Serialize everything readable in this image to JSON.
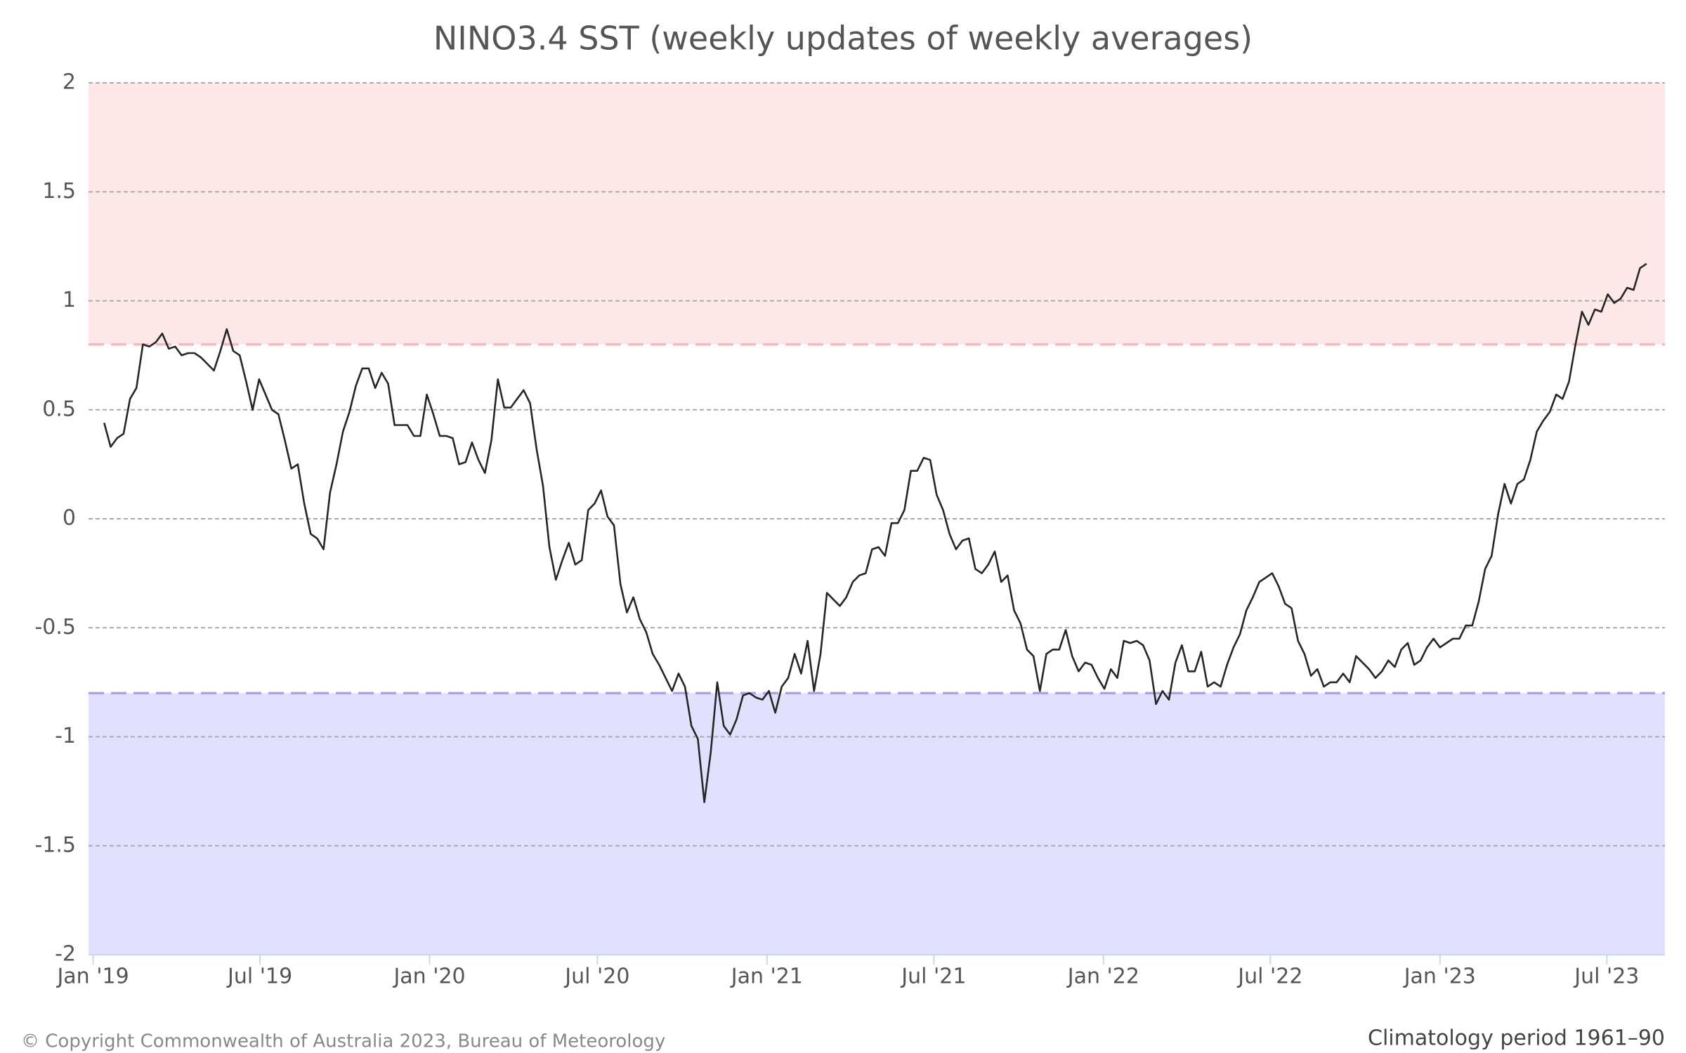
{
  "chart_data": {
    "type": "line",
    "title": "NINO3.4 SST (weekly updates of weekly averages)",
    "footer_left": "© Copyright Commonwealth of Australia 2023, Bureau of Meteorology",
    "footer_right": "Climatology period 1961–90",
    "xlim": [
      "2018-12-27",
      "2023-09-02"
    ],
    "xticks": [
      {
        "value": "2019-01-01",
        "label": "Jan '19"
      },
      {
        "value": "2019-07-01",
        "label": "Jul '19"
      },
      {
        "value": "2020-01-01",
        "label": "Jan '20"
      },
      {
        "value": "2020-07-01",
        "label": "Jul '20"
      },
      {
        "value": "2021-01-01",
        "label": "Jan '21"
      },
      {
        "value": "2021-07-01",
        "label": "Jul '21"
      },
      {
        "value": "2022-01-01",
        "label": "Jan '22"
      },
      {
        "value": "2022-07-01",
        "label": "Jul '22"
      },
      {
        "value": "2023-01-01",
        "label": "Jan '23"
      },
      {
        "value": "2023-07-01",
        "label": "Jul '23"
      }
    ],
    "ylim": [
      -2,
      2
    ],
    "yticks": [
      -2,
      -1.5,
      -1,
      -0.5,
      0,
      0.5,
      1,
      1.5,
      2
    ],
    "grid": true,
    "thresholds": [
      {
        "value": 0.8,
        "color": "#f7b9bd",
        "fill": "#fde8e8",
        "side": "above"
      },
      {
        "value": -0.8,
        "color": "#aaa6e2",
        "fill": "#e1e1fd",
        "side": "below"
      }
    ],
    "x": [
      "2019-01-13",
      "2019-01-20",
      "2019-01-27",
      "2019-02-03",
      "2019-02-10",
      "2019-02-17",
      "2019-02-24",
      "2019-03-03",
      "2019-03-10",
      "2019-03-17",
      "2019-03-24",
      "2019-03-31",
      "2019-04-07",
      "2019-04-14",
      "2019-04-21",
      "2019-04-28",
      "2019-05-05",
      "2019-05-12",
      "2019-05-19",
      "2019-05-26",
      "2019-06-02",
      "2019-06-09",
      "2019-06-16",
      "2019-06-23",
      "2019-06-30",
      "2019-07-07",
      "2019-07-14",
      "2019-07-21",
      "2019-07-28",
      "2019-08-04",
      "2019-08-11",
      "2019-08-18",
      "2019-08-25",
      "2019-09-01",
      "2019-09-08",
      "2019-09-15",
      "2019-09-22",
      "2019-09-29",
      "2019-10-06",
      "2019-10-13",
      "2019-10-20",
      "2019-10-27",
      "2019-11-03",
      "2019-11-10",
      "2019-11-17",
      "2019-11-24",
      "2019-12-01",
      "2019-12-08",
      "2019-12-15",
      "2019-12-22",
      "2019-12-29",
      "2020-01-05",
      "2020-01-12",
      "2020-01-19",
      "2020-01-26",
      "2020-02-02",
      "2020-02-09",
      "2020-02-16",
      "2020-02-23",
      "2020-03-01",
      "2020-03-08",
      "2020-03-15",
      "2020-03-22",
      "2020-03-29",
      "2020-04-05",
      "2020-04-12",
      "2020-04-19",
      "2020-04-26",
      "2020-05-03",
      "2020-05-10",
      "2020-05-17",
      "2020-05-24",
      "2020-05-31",
      "2020-06-07",
      "2020-06-14",
      "2020-06-21",
      "2020-06-28",
      "2020-07-05",
      "2020-07-12",
      "2020-07-19",
      "2020-07-26",
      "2020-08-02",
      "2020-08-09",
      "2020-08-16",
      "2020-08-23",
      "2020-08-30",
      "2020-09-06",
      "2020-09-13",
      "2020-09-20",
      "2020-09-27",
      "2020-10-04",
      "2020-10-11",
      "2020-10-18",
      "2020-10-25",
      "2020-11-01",
      "2020-11-08",
      "2020-11-15",
      "2020-11-22",
      "2020-11-29",
      "2020-12-06",
      "2020-12-13",
      "2020-12-20",
      "2020-12-27",
      "2021-01-03",
      "2021-01-10",
      "2021-01-17",
      "2021-01-24",
      "2021-01-31",
      "2021-02-07",
      "2021-02-14",
      "2021-02-21",
      "2021-02-28",
      "2021-03-07",
      "2021-03-14",
      "2021-03-21",
      "2021-03-28",
      "2021-04-04",
      "2021-04-11",
      "2021-04-18",
      "2021-04-25",
      "2021-05-02",
      "2021-05-09",
      "2021-05-16",
      "2021-05-23",
      "2021-05-30",
      "2021-06-06",
      "2021-06-13",
      "2021-06-20",
      "2021-06-27",
      "2021-07-04",
      "2021-07-11",
      "2021-07-18",
      "2021-07-25",
      "2021-08-01",
      "2021-08-08",
      "2021-08-15",
      "2021-08-22",
      "2021-08-29",
      "2021-09-05",
      "2021-09-12",
      "2021-09-19",
      "2021-09-26",
      "2021-10-03",
      "2021-10-10",
      "2021-10-17",
      "2021-10-24",
      "2021-10-31",
      "2021-11-07",
      "2021-11-14",
      "2021-11-21",
      "2021-11-28",
      "2021-12-05",
      "2021-12-12",
      "2021-12-19",
      "2021-12-26",
      "2022-01-02",
      "2022-01-09",
      "2022-01-16",
      "2022-01-23",
      "2022-01-30",
      "2022-02-06",
      "2022-02-13",
      "2022-02-20",
      "2022-02-27",
      "2022-03-06",
      "2022-03-13",
      "2022-03-20",
      "2022-03-27",
      "2022-04-03",
      "2022-04-10",
      "2022-04-17",
      "2022-04-24",
      "2022-05-01",
      "2022-05-08",
      "2022-05-15",
      "2022-05-22",
      "2022-05-29",
      "2022-06-05",
      "2022-06-12",
      "2022-06-19",
      "2022-06-26",
      "2022-07-03",
      "2022-07-10",
      "2022-07-17",
      "2022-07-24",
      "2022-07-31",
      "2022-08-07",
      "2022-08-14",
      "2022-08-21",
      "2022-08-28",
      "2022-09-04",
      "2022-09-11",
      "2022-09-18",
      "2022-09-25",
      "2022-10-02",
      "2022-10-09",
      "2022-10-16",
      "2022-10-23",
      "2022-10-30",
      "2022-11-06",
      "2022-11-13",
      "2022-11-20",
      "2022-11-27",
      "2022-12-04",
      "2022-12-11",
      "2022-12-18",
      "2022-12-25",
      "2023-01-01",
      "2023-01-08",
      "2023-01-15",
      "2023-01-22",
      "2023-01-29",
      "2023-02-05",
      "2023-02-12",
      "2023-02-19",
      "2023-02-26",
      "2023-03-05",
      "2023-03-12",
      "2023-03-19",
      "2023-03-26",
      "2023-04-02",
      "2023-04-09",
      "2023-04-16",
      "2023-04-23",
      "2023-04-30",
      "2023-05-07",
      "2023-05-14",
      "2023-05-21",
      "2023-05-28",
      "2023-06-04",
      "2023-06-11",
      "2023-06-18",
      "2023-06-25",
      "2023-07-02",
      "2023-07-09",
      "2023-07-16",
      "2023-07-23",
      "2023-07-30",
      "2023-08-06",
      "2023-08-13"
    ],
    "series": [
      {
        "name": "NINO3.4",
        "color": "#262626",
        "values": [
          0.44,
          0.33,
          0.37,
          0.39,
          0.55,
          0.6,
          0.8,
          0.79,
          0.81,
          0.85,
          0.78,
          0.79,
          0.75,
          0.76,
          0.76,
          0.74,
          0.71,
          0.68,
          0.77,
          0.87,
          0.77,
          0.75,
          0.63,
          0.5,
          0.64,
          0.57,
          0.5,
          0.48,
          0.36,
          0.23,
          0.25,
          0.07,
          -0.07,
          -0.09,
          -0.14,
          0.12,
          0.25,
          0.4,
          0.49,
          0.61,
          0.69,
          0.69,
          0.6,
          0.67,
          0.62,
          0.43,
          0.43,
          0.43,
          0.38,
          0.38,
          0.57,
          0.48,
          0.38,
          0.38,
          0.37,
          0.25,
          0.26,
          0.35,
          0.27,
          0.21,
          0.36,
          0.64,
          0.51,
          0.51,
          0.55,
          0.59,
          0.53,
          0.32,
          0.15,
          -0.13,
          -0.28,
          -0.19,
          -0.11,
          -0.21,
          -0.19,
          0.04,
          0.07,
          0.13,
          0.01,
          -0.03,
          -0.3,
          -0.43,
          -0.36,
          -0.46,
          -0.52,
          -0.62,
          -0.67,
          -0.73,
          -0.79,
          -0.71,
          -0.77,
          -0.95,
          -1.01,
          -1.3,
          -1.07,
          -0.75,
          -0.95,
          -0.99,
          -0.92,
          -0.81,
          -0.8,
          -0.82,
          -0.83,
          -0.79,
          -0.89,
          -0.77,
          -0.73,
          -0.62,
          -0.71,
          -0.56,
          -0.79,
          -0.62,
          -0.34,
          -0.37,
          -0.4,
          -0.36,
          -0.29,
          -0.26,
          -0.25,
          -0.14,
          -0.13,
          -0.17,
          -0.02,
          -0.02,
          0.04,
          0.22,
          0.22,
          0.28,
          0.27,
          0.11,
          0.04,
          -0.07,
          -0.14,
          -0.1,
          -0.09,
          -0.23,
          -0.25,
          -0.21,
          -0.15,
          -0.29,
          -0.26,
          -0.42,
          -0.48,
          -0.6,
          -0.63,
          -0.79,
          -0.62,
          -0.6,
          -0.6,
          -0.51,
          -0.63,
          -0.7,
          -0.66,
          -0.67,
          -0.73,
          -0.78,
          -0.69,
          -0.73,
          -0.56,
          -0.57,
          -0.56,
          -0.58,
          -0.65,
          -0.85,
          -0.79,
          -0.83,
          -0.66,
          -0.58,
          -0.7,
          -0.7,
          -0.61,
          -0.77,
          -0.75,
          -0.77,
          -0.67,
          -0.59,
          -0.53,
          -0.42,
          -0.36,
          -0.29,
          -0.27,
          -0.25,
          -0.31,
          -0.39,
          -0.41,
          -0.56,
          -0.62,
          -0.72,
          -0.69,
          -0.77,
          -0.75,
          -0.75,
          -0.71,
          -0.75,
          -0.63,
          -0.66,
          -0.69,
          -0.73,
          -0.7,
          -0.65,
          -0.68,
          -0.6,
          -0.57,
          -0.67,
          -0.65,
          -0.59,
          -0.55,
          -0.59,
          -0.57,
          -0.55,
          -0.55,
          -0.49,
          -0.49,
          -0.38,
          -0.23,
          -0.17,
          0.02,
          0.16,
          0.07,
          0.16,
          0.18,
          0.27,
          0.4,
          0.45,
          0.49,
          0.57,
          0.55,
          0.63,
          0.8,
          0.95,
          0.89,
          0.96,
          0.95,
          1.03,
          0.99,
          1.01,
          1.06,
          1.05,
          1.15,
          1.17
        ]
      }
    ]
  }
}
